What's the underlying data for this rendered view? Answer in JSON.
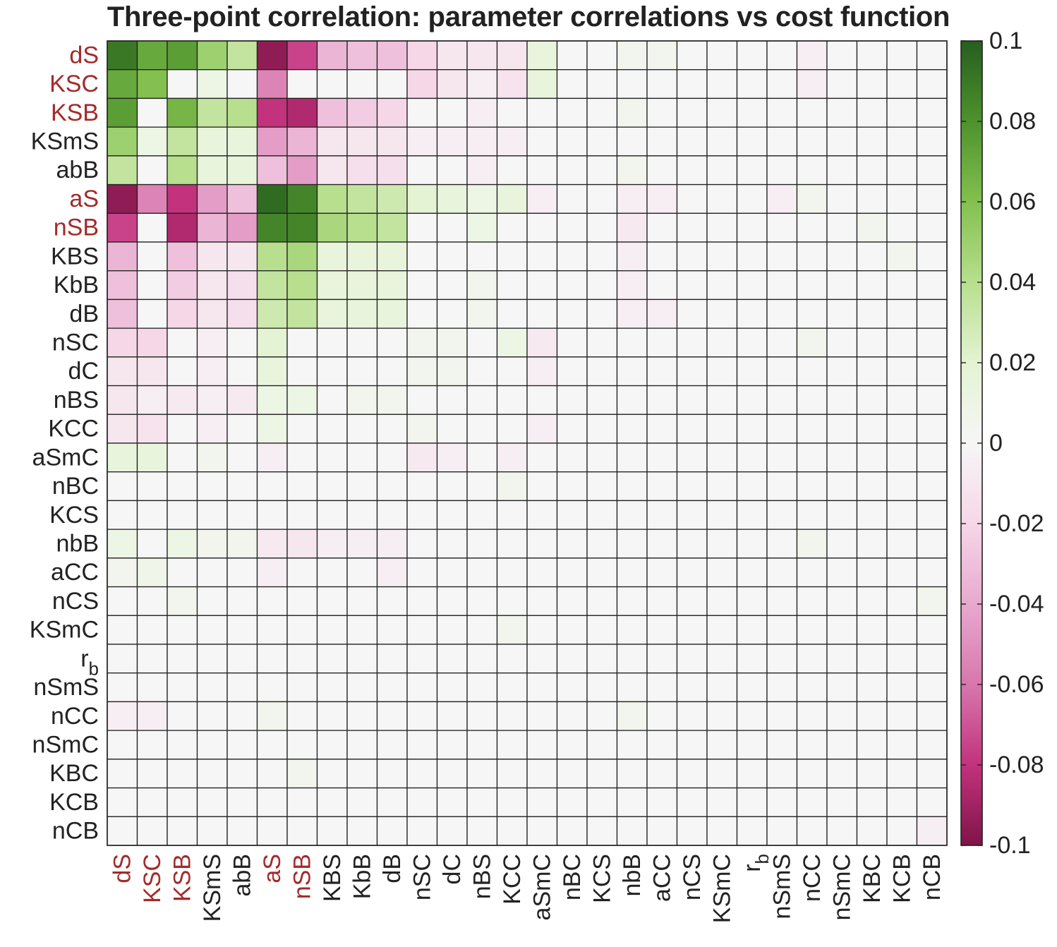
{
  "colors": {
    "highlight_label": "#a52a2a",
    "normal_label": "#222222",
    "grid": "#222222",
    "neutral_cell": "#f6f6f6",
    "colormap": {
      "neg_0.10": "#7f1448",
      "neg_0.08": "#c2327d",
      "neg_0.06": "#d877ac",
      "neg_0.04": "#e7a9ce",
      "neg_0.02": "#f6d7e8",
      "zero": "#f6f6f6",
      "pos_0.02": "#e4f3d3",
      "pos_0.04": "#b7df8d",
      "pos_0.06": "#83c04f",
      "pos_0.08": "#4e922c",
      "pos_0.10": "#265e1f"
    }
  },
  "chart_data": {
    "type": "heatmap",
    "title": "Three-point correlation: parameter correlations vs cost function",
    "xlabel": "",
    "ylabel": "",
    "labels": [
      "dS",
      "KSC",
      "KSB",
      "KSmS",
      "abB",
      "aS",
      "nSB",
      "KBS",
      "KbB",
      "dB",
      "nSC",
      "dC",
      "nBS",
      "KCC",
      "aSmC",
      "nBC",
      "KCS",
      "nbB",
      "aCC",
      "nCS",
      "KSmC",
      "r_b",
      "nSmS",
      "nCC",
      "nSmC",
      "KBC",
      "KCB",
      "nCB"
    ],
    "highlighted_labels": [
      "dS",
      "KSC",
      "KSB",
      "aS",
      "nSB"
    ],
    "colorbar": {
      "range": [
        -0.1,
        0.1
      ],
      "ticks": [
        0.1,
        0.08,
        0.06,
        0.04,
        0.02,
        0,
        -0.02,
        -0.04,
        -0.06,
        -0.08,
        -0.1
      ],
      "tick_labels": [
        "0.1",
        "0.08",
        "0.06",
        "0.04",
        "0.02",
        "0",
        "-0.02",
        "-0.04",
        "-0.06",
        "-0.08",
        "-0.1"
      ]
    },
    "values": [
      [
        0.09,
        0.07,
        0.075,
        0.05,
        0.035,
        -0.095,
        -0.075,
        -0.035,
        -0.03,
        -0.03,
        -0.02,
        -0.01,
        -0.01,
        -0.01,
        0.015,
        0,
        0,
        0.005,
        0.005,
        0,
        0,
        0,
        0,
        -0.005,
        0,
        0,
        0,
        0
      ],
      [
        0.07,
        0.06,
        0,
        0.01,
        0,
        -0.055,
        0,
        0,
        0,
        0,
        -0.02,
        -0.01,
        -0.005,
        -0.012,
        0.015,
        0,
        0,
        0,
        0,
        0,
        0,
        0,
        0,
        -0.005,
        0,
        0,
        0,
        0
      ],
      [
        0.075,
        0,
        0.065,
        0.035,
        0.04,
        -0.08,
        -0.085,
        -0.03,
        -0.025,
        -0.02,
        0,
        0,
        -0.005,
        0,
        0,
        0,
        0,
        0.005,
        0,
        0,
        0,
        0,
        0,
        0,
        0,
        0,
        0,
        0
      ],
      [
        0.05,
        0.01,
        0.035,
        0.015,
        0.015,
        -0.045,
        -0.035,
        -0.01,
        -0.01,
        -0.01,
        -0.005,
        -0.005,
        -0.005,
        -0.005,
        0,
        0,
        0,
        0,
        0,
        0,
        0,
        0,
        0,
        0,
        0,
        0,
        0,
        0
      ],
      [
        0.035,
        0,
        0.04,
        0.015,
        0.015,
        -0.03,
        -0.045,
        -0.01,
        -0.015,
        -0.015,
        0,
        0,
        -0.005,
        0,
        0,
        0,
        0,
        0.005,
        0,
        0,
        0,
        0,
        0,
        0,
        0,
        0,
        0,
        0
      ],
      [
        -0.095,
        -0.055,
        -0.08,
        -0.045,
        -0.03,
        0.095,
        0.085,
        0.04,
        0.035,
        0.03,
        0.02,
        0.015,
        0.01,
        0.015,
        -0.005,
        0,
        0,
        -0.005,
        -0.005,
        0,
        0,
        0,
        -0.005,
        0.005,
        0,
        0,
        0,
        0
      ],
      [
        -0.075,
        0,
        -0.085,
        -0.035,
        -0.045,
        0.085,
        0.085,
        0.045,
        0.04,
        0.035,
        0,
        0,
        0.01,
        0,
        0,
        0,
        0,
        -0.008,
        0,
        0,
        0,
        0,
        0,
        0,
        0,
        0.005,
        0,
        0
      ],
      [
        -0.035,
        0,
        -0.03,
        -0.01,
        -0.01,
        0.04,
        0.045,
        0.015,
        0.015,
        0.015,
        0,
        0,
        0,
        0,
        0,
        0,
        0,
        -0.005,
        0,
        0,
        0,
        0,
        0,
        0,
        0,
        0,
        0.005,
        0
      ],
      [
        -0.03,
        0,
        -0.025,
        -0.01,
        -0.015,
        0.035,
        0.04,
        0.015,
        0.015,
        0.015,
        0,
        0,
        0.005,
        0,
        0,
        0,
        0,
        -0.005,
        0,
        0,
        0,
        0,
        0,
        0,
        0,
        0,
        0,
        0
      ],
      [
        -0.03,
        0,
        -0.02,
        -0.01,
        -0.015,
        0.03,
        0.035,
        0.015,
        0.015,
        0.015,
        0,
        0,
        0.005,
        0,
        0,
        0,
        0,
        -0.005,
        -0.005,
        0,
        0,
        0,
        0,
        0,
        0,
        0,
        0,
        0
      ],
      [
        -0.02,
        -0.02,
        0,
        -0.005,
        0,
        0.02,
        0,
        0,
        0,
        0,
        0.005,
        0.005,
        0,
        0.01,
        -0.008,
        0,
        0,
        0,
        0,
        0,
        0,
        0,
        0,
        0.005,
        0,
        0,
        0,
        0
      ],
      [
        -0.01,
        -0.01,
        0,
        -0.005,
        0,
        0.015,
        0,
        0,
        0,
        0,
        0.005,
        0.005,
        0,
        0,
        -0.005,
        0,
        0,
        0,
        0,
        0,
        0,
        0,
        0,
        0,
        0,
        0,
        0,
        0
      ],
      [
        -0.01,
        -0.005,
        -0.008,
        -0.005,
        -0.008,
        0.01,
        0.01,
        0,
        0.005,
        0.005,
        0,
        0,
        0,
        0,
        0,
        0,
        0,
        0,
        0,
        0,
        0,
        0,
        0,
        0,
        0,
        0,
        0,
        0
      ],
      [
        -0.01,
        -0.012,
        0,
        -0.005,
        0,
        0.01,
        0,
        0,
        0,
        0,
        0.005,
        0,
        0,
        0,
        -0.005,
        0,
        0,
        0,
        0,
        0,
        0,
        0,
        0,
        0,
        0,
        0,
        0,
        0
      ],
      [
        0.015,
        0.015,
        0,
        0.005,
        0,
        -0.005,
        0,
        0,
        0,
        0,
        -0.008,
        -0.005,
        0,
        -0.005,
        0,
        0,
        0,
        0,
        0,
        0,
        0,
        0,
        0,
        0,
        0,
        0,
        0,
        0
      ],
      [
        0,
        0,
        0,
        0,
        0,
        0,
        0,
        0,
        0,
        0,
        0,
        0,
        0,
        0.005,
        0,
        0,
        0,
        0,
        0,
        0,
        0,
        0,
        0,
        0,
        0,
        0,
        0,
        0
      ],
      [
        0,
        0,
        0,
        0,
        0,
        0,
        0,
        0,
        0,
        0,
        0,
        0,
        0,
        0,
        0,
        0,
        0,
        0,
        0,
        0,
        0,
        0,
        0,
        0,
        0,
        0,
        0,
        0
      ],
      [
        0.01,
        0,
        0.01,
        0.005,
        0.005,
        -0.008,
        -0.01,
        -0.005,
        -0.005,
        -0.005,
        0,
        0,
        0,
        0,
        0,
        0,
        0,
        0,
        0,
        0,
        0,
        0,
        0,
        0.005,
        0,
        0,
        0,
        0
      ],
      [
        0.005,
        0.008,
        0,
        0,
        0,
        -0.005,
        0,
        0,
        0,
        -0.005,
        0,
        0,
        0,
        0,
        0,
        0,
        0,
        0,
        0,
        0,
        0,
        0,
        0,
        0,
        0,
        0,
        0,
        0
      ],
      [
        0,
        0,
        0.005,
        0,
        0,
        0,
        0,
        0,
        0,
        0,
        0,
        0,
        0,
        0,
        0,
        0,
        0,
        0,
        0,
        0,
        0,
        0,
        0,
        0,
        0,
        0,
        0,
        0.005
      ],
      [
        0,
        0,
        0,
        0,
        0,
        0,
        0,
        0,
        0,
        0,
        0,
        0,
        0,
        0.005,
        0,
        0,
        0,
        0,
        0,
        0,
        0,
        0,
        0,
        0,
        0,
        0,
        0,
        0
      ],
      [
        0,
        0,
        0,
        0,
        0,
        0,
        0,
        0,
        0,
        0,
        0,
        0,
        0,
        0,
        0,
        0,
        0,
        0,
        0,
        0,
        0,
        0,
        0,
        0,
        0,
        0,
        0,
        0
      ],
      [
        0,
        0,
        0,
        0,
        0,
        0,
        0,
        0,
        0,
        0,
        0,
        0,
        0,
        0,
        0,
        0,
        0,
        0,
        0,
        0,
        0,
        0,
        0,
        0,
        0,
        0,
        0,
        0
      ],
      [
        -0.005,
        -0.005,
        0,
        0,
        0,
        0.005,
        0,
        0,
        0,
        0,
        0,
        0,
        0,
        0,
        0,
        0,
        0,
        0.005,
        0,
        0,
        0,
        0,
        0,
        0,
        0,
        0,
        0,
        0
      ],
      [
        0,
        0,
        0,
        0,
        0,
        0,
        0,
        0,
        0,
        0,
        0,
        0,
        0,
        0,
        0,
        0,
        0,
        0,
        0,
        0,
        0,
        0,
        0,
        0,
        0,
        0,
        0,
        0
      ],
      [
        0,
        0,
        0,
        0,
        0,
        0,
        0.005,
        0,
        0,
        0,
        0,
        0,
        0,
        0,
        0,
        0,
        0,
        0,
        0,
        0,
        0,
        0,
        0,
        0,
        0,
        0,
        0,
        0
      ],
      [
        0,
        0,
        0,
        0,
        0,
        0,
        0,
        0,
        0,
        0,
        0,
        0,
        0,
        0,
        0,
        0,
        0,
        0,
        0,
        0,
        0,
        0,
        0,
        0,
        0,
        0,
        0,
        0
      ],
      [
        0,
        0,
        0,
        0,
        0,
        0,
        0,
        0,
        0,
        0,
        0,
        0,
        0,
        0,
        0,
        0,
        0,
        0,
        0,
        0,
        0,
        0,
        0,
        0,
        0,
        0,
        0,
        -0.005
      ]
    ]
  }
}
